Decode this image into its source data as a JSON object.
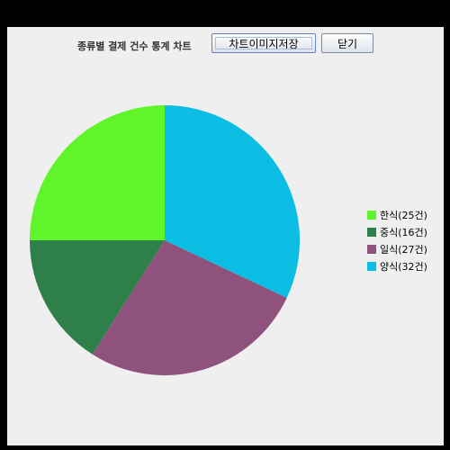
{
  "toolbar": {
    "title": "종류별 결제 건수 통계 차트",
    "save_label": "차트이미지저장",
    "close_label": "닫기"
  },
  "chart_data": {
    "type": "pie",
    "categories": [
      "한식",
      "중식",
      "일식",
      "양식"
    ],
    "values": [
      25,
      16,
      27,
      32
    ],
    "colors": [
      "#5ff52a",
      "#2f7f4a",
      "#8f527c",
      "#0cbde3"
    ],
    "legend_labels": [
      "한식(25건)",
      "중식(16건)",
      "일식(27건)",
      "양식(32건)"
    ],
    "legend_position": "right",
    "start_angle_deg": 90,
    "direction": "counterclockwise"
  }
}
